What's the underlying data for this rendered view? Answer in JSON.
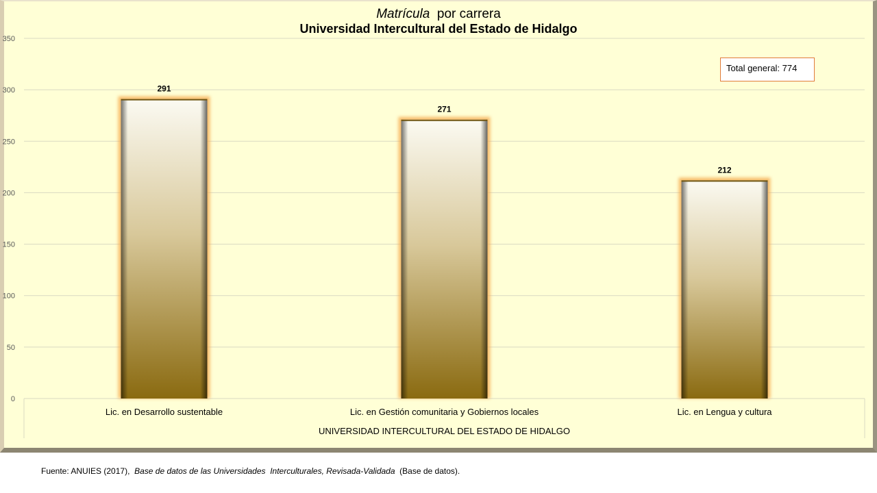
{
  "title": {
    "italic_part": "Matrícula",
    "rest": "  por carrera",
    "line2": "Universidad Intercultural del Estado de Hidalgo"
  },
  "total_box": {
    "text": "Total general: 774"
  },
  "source": {
    "prefix": "Fuente: ANUIES (2017),  ",
    "italic": "Base de datos de las Universidades  Interculturales, Revisada-Validada",
    "suffix": "  (Base de datos)."
  },
  "colors": {
    "background": "#ffffd6",
    "bar_top": "#fbfaf2",
    "bar_bottom": "#8a6a10",
    "bar_glow": "#f5a94b",
    "gridline": "#d9d9c2"
  },
  "chart_data": {
    "type": "bar",
    "title": "Matrícula por carrera Universidad Intercultural del Estado de Hidalgo",
    "categories": [
      "Lic. en Desarrollo sustentable",
      "Lic. en Gestión comunitaria y Gobiernos locales",
      "Lic. en Lengua y cultura"
    ],
    "values": [
      291,
      271,
      212
    ],
    "data_labels": [
      "291",
      "271",
      "212"
    ],
    "xlabel": "UNIVERSIDAD INTERCULTURAL DEL ESTADO DE HIDALGO",
    "ylabel": "",
    "ylim": [
      0,
      350
    ],
    "yticks": [
      0,
      50,
      100,
      150,
      200,
      250,
      300,
      350
    ],
    "grid": true,
    "legend": "none"
  }
}
